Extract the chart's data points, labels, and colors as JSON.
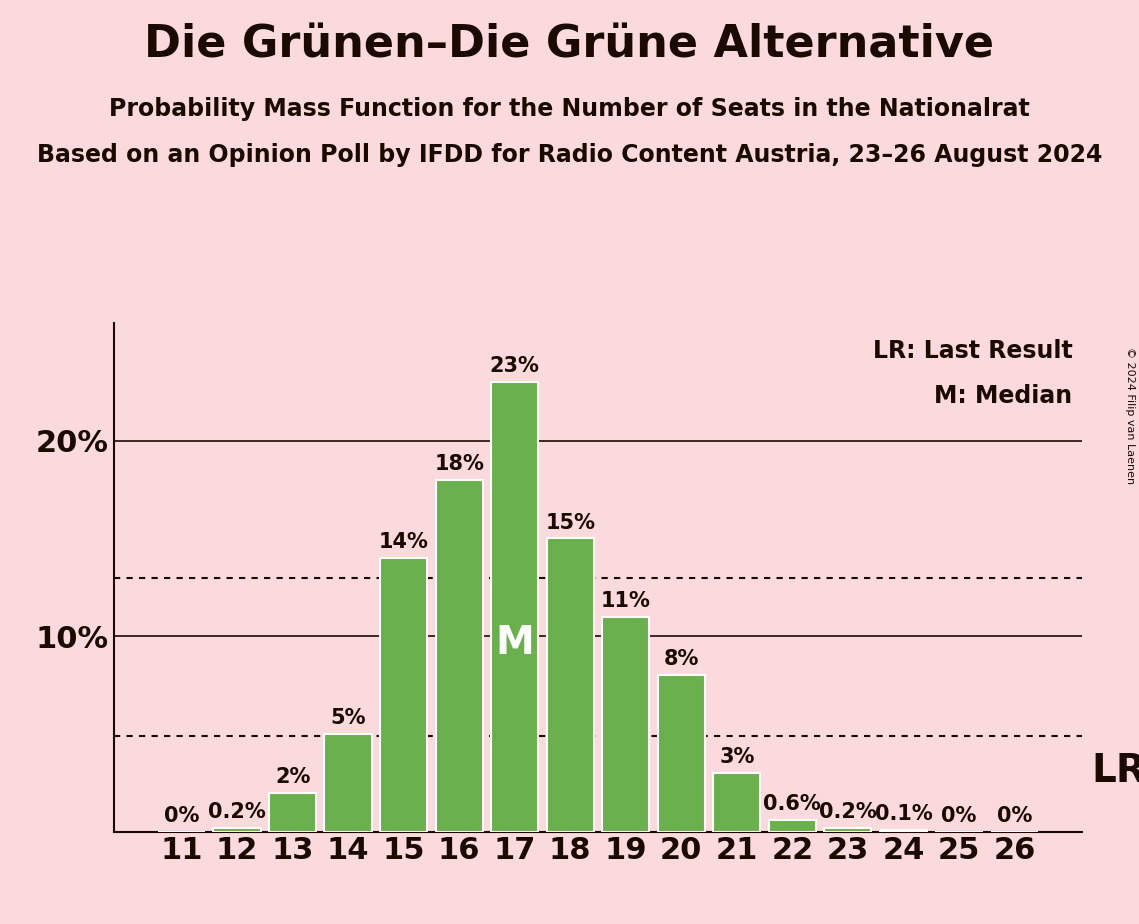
{
  "title": "Die Grünen–Die Grüne Alternative",
  "subtitle1": "Probability Mass Function for the Number of Seats in the Nationalrat",
  "subtitle2": "Based on an Opinion Poll by IFDD for Radio Content Austria, 23–26 August 2024",
  "copyright": "© 2024 Filip van Laenen",
  "seats": [
    11,
    12,
    13,
    14,
    15,
    16,
    17,
    18,
    19,
    20,
    21,
    22,
    23,
    24,
    25,
    26
  ],
  "probabilities": [
    0.0,
    0.2,
    2.0,
    5.0,
    14.0,
    18.0,
    23.0,
    15.0,
    11.0,
    8.0,
    3.0,
    0.6,
    0.2,
    0.1,
    0.0,
    0.0
  ],
  "bar_labels": [
    "0%",
    "0.2%",
    "2%",
    "5%",
    "14%",
    "18%",
    "23%",
    "15%",
    "11%",
    "8%",
    "3%",
    "0.6%",
    "0.2%",
    "0.1%",
    "0%",
    "0%"
  ],
  "bar_color": "#6ab04c",
  "bar_edge_color": "#ffffff",
  "background_color": "#fadadd",
  "median_seat": 17,
  "median_label": "M",
  "lr_label": "LR",
  "lr_dotted_lines": [
    4.9,
    13.0
  ],
  "ylim": [
    0,
    26
  ],
  "yticks": [
    10,
    20
  ],
  "ytick_labels": [
    "10%",
    "20%"
  ],
  "legend_lr": "LR: Last Result",
  "legend_m": "M: Median",
  "title_fontsize": 32,
  "subtitle1_fontsize": 17,
  "subtitle2_fontsize": 17,
  "axis_tick_fontsize": 22,
  "bar_label_fontsize": 15,
  "median_label_fontsize": 28,
  "lr_fontsize": 28,
  "legend_fontsize": 17,
  "copyright_fontsize": 8,
  "text_color": "#1a0a00"
}
